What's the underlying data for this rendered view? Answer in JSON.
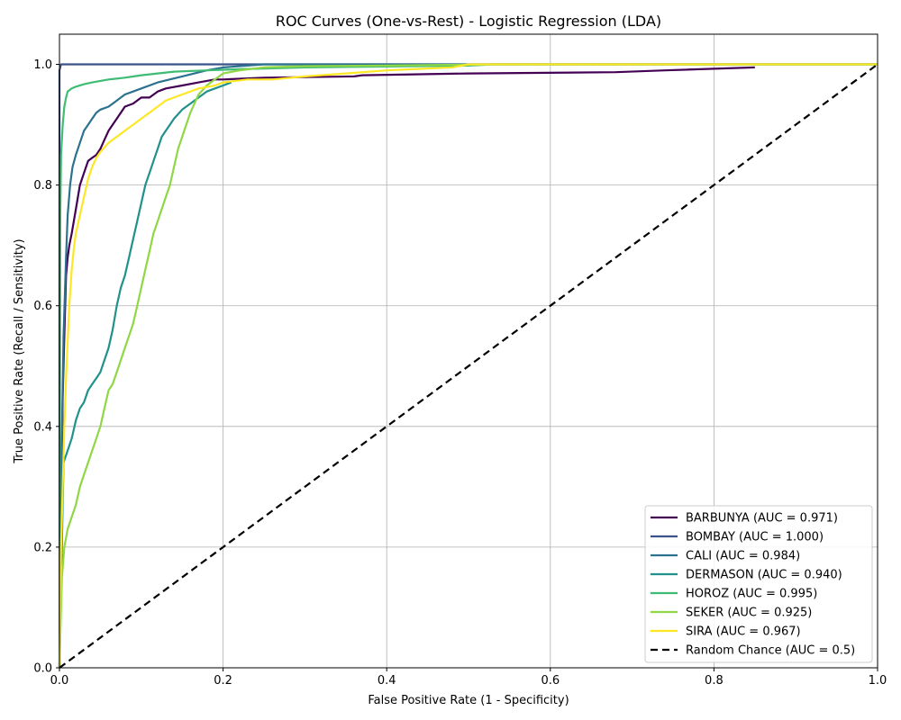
{
  "chart_data": {
    "type": "line",
    "title": "ROC Curves (One-vs-Rest) - Logistic Regression (LDA)",
    "xlabel": "False Positive Rate (1 - Specificity)",
    "ylabel": "True Positive Rate (Recall / Sensitivity)",
    "xlim": [
      0.0,
      1.0
    ],
    "ylim": [
      0.0,
      1.05
    ],
    "xticks": [
      "0.0",
      "0.2",
      "0.4",
      "0.6",
      "0.8",
      "1.0"
    ],
    "yticks": [
      "0.0",
      "0.2",
      "0.4",
      "0.6",
      "0.8",
      "1.0"
    ],
    "grid": true,
    "legend_position": "lower-right",
    "series": [
      {
        "name": "BARBUNYA (AUC = 0.971)",
        "color": "#440154",
        "dash": "solid",
        "x": [
          0,
          0.004,
          0.006,
          0.008,
          0.01,
          0.012,
          0.015,
          0.02,
          0.025,
          0.03,
          0.035,
          0.04,
          0.045,
          0.05,
          0.055,
          0.06,
          0.065,
          0.07,
          0.075,
          0.08,
          0.09,
          0.1,
          0.11,
          0.12,
          0.13,
          0.15,
          0.17,
          0.19,
          0.2,
          0.25,
          0.36,
          0.37,
          0.5,
          0.68,
          0.74,
          0.85
        ],
        "y": [
          0,
          0.45,
          0.55,
          0.65,
          0.68,
          0.7,
          0.72,
          0.76,
          0.8,
          0.82,
          0.84,
          0.845,
          0.85,
          0.86,
          0.875,
          0.89,
          0.9,
          0.91,
          0.92,
          0.93,
          0.935,
          0.945,
          0.945,
          0.955,
          0.96,
          0.965,
          0.97,
          0.975,
          0.975,
          0.978,
          0.98,
          0.982,
          0.985,
          0.987,
          0.99,
          0.995
        ]
      },
      {
        "name": "BOMBAY (AUC = 1.000)",
        "color": "#3b528b",
        "dash": "solid",
        "x": [
          0,
          0.0,
          0.002,
          1.0
        ],
        "y": [
          0,
          0.99,
          1.0,
          1.0
        ]
      },
      {
        "name": "CALI (AUC = 0.984)",
        "color": "#2c728e",
        "dash": "solid",
        "x": [
          0,
          0.003,
          0.005,
          0.008,
          0.01,
          0.013,
          0.016,
          0.02,
          0.025,
          0.03,
          0.035,
          0.04,
          0.045,
          0.05,
          0.06,
          0.07,
          0.08,
          0.09,
          0.1,
          0.12,
          0.15,
          0.18,
          0.2,
          0.25,
          1.0
        ],
        "y": [
          0,
          0.38,
          0.55,
          0.68,
          0.75,
          0.8,
          0.83,
          0.85,
          0.87,
          0.89,
          0.9,
          0.91,
          0.92,
          0.925,
          0.93,
          0.94,
          0.95,
          0.955,
          0.96,
          0.97,
          0.98,
          0.99,
          0.995,
          1.0,
          1.0
        ]
      },
      {
        "name": "DERMASON (AUC = 0.940)",
        "color": "#21918c",
        "dash": "solid",
        "x": [
          0,
          0.005,
          0.01,
          0.015,
          0.02,
          0.025,
          0.03,
          0.035,
          0.04,
          0.045,
          0.05,
          0.055,
          0.06,
          0.065,
          0.07,
          0.075,
          0.08,
          0.085,
          0.09,
          0.095,
          0.1,
          0.105,
          0.11,
          0.115,
          0.12,
          0.125,
          0.13,
          0.135,
          0.14,
          0.15,
          0.16,
          0.17,
          0.18,
          0.19,
          0.2,
          0.21
        ],
        "y": [
          0,
          0.34,
          0.36,
          0.38,
          0.41,
          0.43,
          0.44,
          0.46,
          0.47,
          0.48,
          0.49,
          0.51,
          0.53,
          0.56,
          0.6,
          0.63,
          0.65,
          0.68,
          0.71,
          0.74,
          0.77,
          0.8,
          0.82,
          0.84,
          0.86,
          0.88,
          0.89,
          0.9,
          0.91,
          0.925,
          0.935,
          0.945,
          0.955,
          0.96,
          0.965,
          0.97
        ]
      },
      {
        "name": "HOROZ (AUC = 0.995)",
        "color": "#3fbc73",
        "dash": "solid",
        "x": [
          0,
          0.001,
          0.002,
          0.004,
          0.006,
          0.008,
          0.01,
          0.015,
          0.02,
          0.03,
          0.04,
          0.06,
          0.08,
          0.1,
          0.12,
          0.14,
          0.18,
          0.22,
          0.3,
          0.5,
          0.53,
          1.0
        ],
        "y": [
          0,
          0.75,
          0.85,
          0.9,
          0.93,
          0.945,
          0.955,
          0.96,
          0.963,
          0.967,
          0.97,
          0.975,
          0.978,
          0.982,
          0.985,
          0.988,
          0.99,
          0.992,
          0.995,
          0.998,
          1.0,
          1.0
        ]
      },
      {
        "name": "SEKER (AUC = 0.925)",
        "color": "#8fd744",
        "dash": "solid",
        "x": [
          0,
          0.003,
          0.006,
          0.01,
          0.015,
          0.02,
          0.025,
          0.03,
          0.035,
          0.04,
          0.045,
          0.05,
          0.055,
          0.06,
          0.065,
          0.07,
          0.075,
          0.08,
          0.085,
          0.09,
          0.095,
          0.1,
          0.105,
          0.11,
          0.115,
          0.12,
          0.125,
          0.13,
          0.135,
          0.14,
          0.145,
          0.15,
          0.155,
          0.16,
          0.165,
          0.17,
          0.18,
          0.19,
          0.2,
          0.22,
          0.25,
          0.3,
          0.4,
          0.53,
          1.0
        ],
        "y": [
          0,
          0.15,
          0.2,
          0.23,
          0.25,
          0.27,
          0.3,
          0.32,
          0.34,
          0.36,
          0.38,
          0.4,
          0.43,
          0.46,
          0.47,
          0.49,
          0.51,
          0.53,
          0.55,
          0.57,
          0.6,
          0.63,
          0.66,
          0.69,
          0.72,
          0.74,
          0.76,
          0.78,
          0.8,
          0.83,
          0.86,
          0.88,
          0.9,
          0.92,
          0.935,
          0.95,
          0.965,
          0.975,
          0.985,
          0.99,
          0.995,
          0.997,
          0.998,
          1.0,
          1.0
        ]
      },
      {
        "name": "SIRA (AUC = 0.967)",
        "color": "#fde725",
        "dash": "solid",
        "x": [
          0,
          0.002,
          0.004,
          0.006,
          0.008,
          0.01,
          0.012,
          0.015,
          0.018,
          0.02,
          0.025,
          0.03,
          0.035,
          0.04,
          0.045,
          0.05,
          0.06,
          0.07,
          0.08,
          0.09,
          0.1,
          0.11,
          0.12,
          0.13,
          0.14,
          0.15,
          0.17,
          0.19,
          0.2,
          0.23,
          0.26,
          0.3,
          0.35,
          0.4,
          0.48,
          0.5,
          1.0
        ],
        "y": [
          0,
          0.2,
          0.3,
          0.4,
          0.48,
          0.54,
          0.6,
          0.66,
          0.7,
          0.72,
          0.75,
          0.78,
          0.81,
          0.83,
          0.845,
          0.855,
          0.87,
          0.88,
          0.89,
          0.9,
          0.91,
          0.92,
          0.93,
          0.94,
          0.945,
          0.95,
          0.96,
          0.965,
          0.97,
          0.975,
          0.975,
          0.98,
          0.985,
          0.99,
          0.995,
          1.0,
          1.0
        ]
      },
      {
        "name": "Random Chance (AUC = 0.5)",
        "color": "#000000",
        "dash": "dashed",
        "x": [
          0,
          1
        ],
        "y": [
          0,
          1
        ]
      }
    ]
  }
}
